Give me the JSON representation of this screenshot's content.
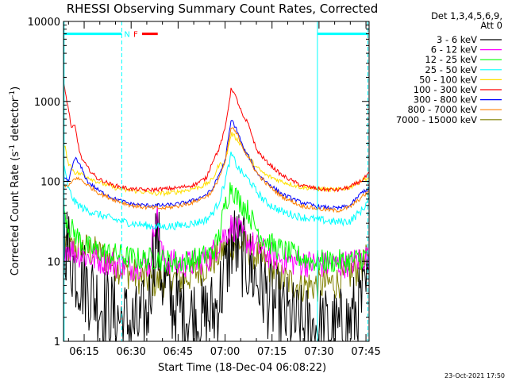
{
  "chart_data": {
    "type": "line",
    "title": "RHESSI Observing Summary Count Rates, Corrected",
    "xlabel": "Start Time (18-Dec-04 06:08:22)",
    "ylabel": "Corrected Count Rate (s",
    "ylabel_sup1": "-1",
    "ylabel_mid": " detector",
    "ylabel_sup2": "-1",
    "ylabel_end": ")",
    "xlim": [
      8.4,
      106.0
    ],
    "ylim": [
      1,
      10000
    ],
    "yscale": "log",
    "x_unit": "minutes after 06:00 UT",
    "x_ticks": [
      {
        "value": 15,
        "label": "06:15"
      },
      {
        "value": 30,
        "label": "06:30"
      },
      {
        "value": 45,
        "label": "06:45"
      },
      {
        "value": 60,
        "label": "07:00"
      },
      {
        "value": 75,
        "label": "07:15"
      },
      {
        "value": 90,
        "label": "07:30"
      },
      {
        "value": 105,
        "label": "07:45"
      }
    ],
    "y_ticks": [
      {
        "value": 1,
        "label": "1"
      },
      {
        "value": 10,
        "label": "10"
      },
      {
        "value": 100,
        "label": "100"
      },
      {
        "value": 1000,
        "label": "1000"
      },
      {
        "value": 10000,
        "label": "10000"
      }
    ],
    "legend": {
      "placement": "right",
      "header1": "Det 1,3,4,5,6,9,",
      "header2": "Att 0"
    },
    "series": [
      {
        "name": "3 - 6 keV",
        "color": "#000000",
        "noise": 0.55,
        "points": [
          [
            8.4,
            25
          ],
          [
            12,
            8
          ],
          [
            16,
            5
          ],
          [
            20,
            3
          ],
          [
            25,
            2
          ],
          [
            28,
            1.8
          ],
          [
            32,
            1.5
          ],
          [
            35,
            2
          ],
          [
            38,
            25
          ],
          [
            40,
            6
          ],
          [
            43,
            3
          ],
          [
            48,
            2.2
          ],
          [
            53,
            1.8
          ],
          [
            57,
            2.5
          ],
          [
            60,
            7
          ],
          [
            62,
            18
          ],
          [
            65,
            13
          ],
          [
            69,
            7
          ],
          [
            73,
            4
          ],
          [
            78,
            2.2
          ],
          [
            84,
            1.5
          ],
          [
            90,
            1.5
          ],
          [
            96,
            1.3
          ],
          [
            100,
            1.8
          ],
          [
            104,
            3
          ],
          [
            106,
            5
          ]
        ]
      },
      {
        "name": "6 - 12 keV",
        "color": "#ff00ff",
        "noise": 0.18,
        "points": [
          [
            8.4,
            16
          ],
          [
            12,
            13
          ],
          [
            17,
            11
          ],
          [
            22,
            10
          ],
          [
            26,
            9
          ],
          [
            30,
            8.5
          ],
          [
            34,
            9.5
          ],
          [
            36,
            9
          ],
          [
            38,
            45
          ],
          [
            40,
            11
          ],
          [
            45,
            9
          ],
          [
            50,
            9.5
          ],
          [
            55,
            11
          ],
          [
            58,
            17
          ],
          [
            60,
            22
          ],
          [
            62,
            28
          ],
          [
            64,
            24
          ],
          [
            67,
            18
          ],
          [
            70,
            15
          ],
          [
            74,
            12
          ],
          [
            80,
            10
          ],
          [
            86,
            9.5
          ],
          [
            92,
            9
          ],
          [
            96,
            9
          ],
          [
            100,
            9.5
          ],
          [
            104,
            11
          ],
          [
            106,
            12
          ]
        ]
      },
      {
        "name": "12 - 25 keV",
        "color": "#00ff00",
        "noise": 0.15,
        "points": [
          [
            8.4,
            50
          ],
          [
            10,
            28
          ],
          [
            13,
            20
          ],
          [
            16,
            15
          ],
          [
            21,
            13
          ],
          [
            26,
            12
          ],
          [
            30,
            11
          ],
          [
            34,
            10.5
          ],
          [
            38,
            11
          ],
          [
            42,
            10
          ],
          [
            47,
            10
          ],
          [
            52,
            11
          ],
          [
            56,
            13
          ],
          [
            58,
            20
          ],
          [
            60,
            50
          ],
          [
            62,
            90
          ],
          [
            64,
            60
          ],
          [
            67,
            45
          ],
          [
            69,
            30
          ],
          [
            72,
            20
          ],
          [
            76,
            15
          ],
          [
            82,
            12
          ],
          [
            88,
            10
          ],
          [
            94,
            10
          ],
          [
            98,
            10
          ],
          [
            102,
            10.5
          ],
          [
            106,
            12
          ]
        ]
      },
      {
        "name": "25 - 50 keV",
        "color": "#00ffff",
        "noise": 0.05,
        "points": [
          [
            8.4,
            160
          ],
          [
            10,
            80
          ],
          [
            12,
            55
          ],
          [
            15,
            45
          ],
          [
            20,
            38
          ],
          [
            25,
            33
          ],
          [
            30,
            30
          ],
          [
            35,
            28
          ],
          [
            40,
            27
          ],
          [
            45,
            28
          ],
          [
            50,
            30
          ],
          [
            54,
            33
          ],
          [
            56,
            40
          ],
          [
            58,
            55
          ],
          [
            60,
            100
          ],
          [
            62,
            220
          ],
          [
            64,
            150
          ],
          [
            66,
            120
          ],
          [
            68,
            100
          ],
          [
            70,
            75
          ],
          [
            73,
            55
          ],
          [
            78,
            42
          ],
          [
            84,
            36
          ],
          [
            90,
            33
          ],
          [
            96,
            31
          ],
          [
            100,
            32
          ],
          [
            104,
            45
          ],
          [
            106,
            60
          ]
        ]
      },
      {
        "name": "50 - 100 keV",
        "color": "#ffe000",
        "noise": 0.03,
        "points": [
          [
            8.4,
            320
          ],
          [
            10,
            170
          ],
          [
            12,
            130
          ],
          [
            15,
            120
          ],
          [
            19,
            100
          ],
          [
            24,
            85
          ],
          [
            28,
            78
          ],
          [
            33,
            75
          ],
          [
            38,
            70
          ],
          [
            43,
            72
          ],
          [
            48,
            78
          ],
          [
            53,
            88
          ],
          [
            56,
            105
          ],
          [
            58,
            160
          ],
          [
            60,
            170
          ],
          [
            62,
            400
          ],
          [
            64,
            330
          ],
          [
            66,
            260
          ],
          [
            68,
            190
          ],
          [
            70,
            150
          ],
          [
            73,
            120
          ],
          [
            78,
            100
          ],
          [
            84,
            85
          ],
          [
            90,
            80
          ],
          [
            96,
            78
          ],
          [
            100,
            85
          ],
          [
            104,
            105
          ],
          [
            106,
            110
          ]
        ]
      },
      {
        "name": "100 - 300 keV",
        "color": "#ff0000",
        "noise": 0.025,
        "points": [
          [
            8.4,
            1700
          ],
          [
            10,
            800
          ],
          [
            11,
            450
          ],
          [
            12,
            500
          ],
          [
            13,
            300
          ],
          [
            14,
            200
          ],
          [
            16,
            150
          ],
          [
            19,
            110
          ],
          [
            24,
            90
          ],
          [
            30,
            80
          ],
          [
            35,
            78
          ],
          [
            40,
            80
          ],
          [
            45,
            83
          ],
          [
            50,
            90
          ],
          [
            54,
            110
          ],
          [
            56,
            180
          ],
          [
            58,
            250
          ],
          [
            60,
            450
          ],
          [
            62,
            1500
          ],
          [
            64,
            1000
          ],
          [
            66,
            600
          ],
          [
            67,
            560
          ],
          [
            68,
            450
          ],
          [
            70,
            250
          ],
          [
            73,
            180
          ],
          [
            78,
            120
          ],
          [
            84,
            90
          ],
          [
            90,
            80
          ],
          [
            96,
            78
          ],
          [
            100,
            85
          ],
          [
            104,
            105
          ],
          [
            106,
            125
          ]
        ]
      },
      {
        "name": "300 - 800 keV",
        "color": "#0000ff",
        "noise": 0.025,
        "points": [
          [
            8.4,
            110
          ],
          [
            10,
            100
          ],
          [
            12,
            200
          ],
          [
            14,
            150
          ],
          [
            16,
            100
          ],
          [
            20,
            75
          ],
          [
            25,
            60
          ],
          [
            30,
            52
          ],
          [
            35,
            50
          ],
          [
            40,
            50
          ],
          [
            45,
            52
          ],
          [
            50,
            58
          ],
          [
            54,
            68
          ],
          [
            56,
            80
          ],
          [
            58,
            120
          ],
          [
            60,
            180
          ],
          [
            62,
            600
          ],
          [
            64,
            420
          ],
          [
            66,
            250
          ],
          [
            68,
            190
          ],
          [
            70,
            130
          ],
          [
            73,
            100
          ],
          [
            78,
            70
          ],
          [
            84,
            55
          ],
          [
            90,
            48
          ],
          [
            96,
            46
          ],
          [
            100,
            50
          ],
          [
            104,
            75
          ],
          [
            106,
            80
          ]
        ]
      },
      {
        "name": "800 - 7000 keV",
        "color": "#ff8000",
        "noise": 0.025,
        "points": [
          [
            8.4,
            90
          ],
          [
            10,
            85
          ],
          [
            12,
            110
          ],
          [
            14,
            105
          ],
          [
            16,
            90
          ],
          [
            20,
            70
          ],
          [
            25,
            58
          ],
          [
            30,
            50
          ],
          [
            35,
            47
          ],
          [
            40,
            46
          ],
          [
            45,
            49
          ],
          [
            50,
            55
          ],
          [
            54,
            65
          ],
          [
            56,
            75
          ],
          [
            58,
            110
          ],
          [
            60,
            170
          ],
          [
            62,
            480
          ],
          [
            64,
            380
          ],
          [
            66,
            250
          ],
          [
            68,
            180
          ],
          [
            70,
            130
          ],
          [
            73,
            95
          ],
          [
            78,
            65
          ],
          [
            84,
            50
          ],
          [
            90,
            45
          ],
          [
            96,
            43
          ],
          [
            100,
            48
          ],
          [
            104,
            65
          ],
          [
            106,
            75
          ]
        ]
      },
      {
        "name": "7000 - 15000 keV",
        "color": "#808000",
        "noise": 0.22,
        "points": [
          [
            8.4,
            12
          ],
          [
            10,
            14
          ],
          [
            14,
            15
          ],
          [
            18,
            13
          ],
          [
            22,
            11
          ],
          [
            26,
            8.5
          ],
          [
            30,
            7
          ],
          [
            34,
            6
          ],
          [
            38,
            5.5
          ],
          [
            42,
            6
          ],
          [
            46,
            6
          ],
          [
            50,
            7
          ],
          [
            54,
            9
          ],
          [
            57,
            11
          ],
          [
            60,
            15
          ],
          [
            63,
            17
          ],
          [
            66,
            16
          ],
          [
            70,
            12
          ],
          [
            74,
            8.5
          ],
          [
            78,
            6
          ],
          [
            84,
            5
          ],
          [
            90,
            5
          ],
          [
            96,
            5.5
          ],
          [
            100,
            7
          ],
          [
            104,
            9
          ],
          [
            106,
            11
          ]
        ]
      }
    ],
    "vertical_lines": [
      {
        "x": 8.6,
        "style": "solid"
      },
      {
        "x": 27.0,
        "style": "dashed"
      },
      {
        "x": 89.5,
        "style": "solid"
      },
      {
        "x": 105.6,
        "style": "dashed"
      }
    ],
    "bars": [
      {
        "label": "N",
        "x_start": 8.6,
        "x_end": 27.0,
        "y": 7000,
        "color": "#00ffff"
      },
      {
        "label": "",
        "x_start": 89.5,
        "x_end": 105.6,
        "y": 7000,
        "color": "#00ffff"
      },
      {
        "label": "F",
        "x_start": 33.5,
        "x_end": 38.5,
        "y": 7000,
        "color": "#ff0000"
      }
    ]
  },
  "footer": {
    "timestamp": "23-Oct-2021 17:50"
  }
}
